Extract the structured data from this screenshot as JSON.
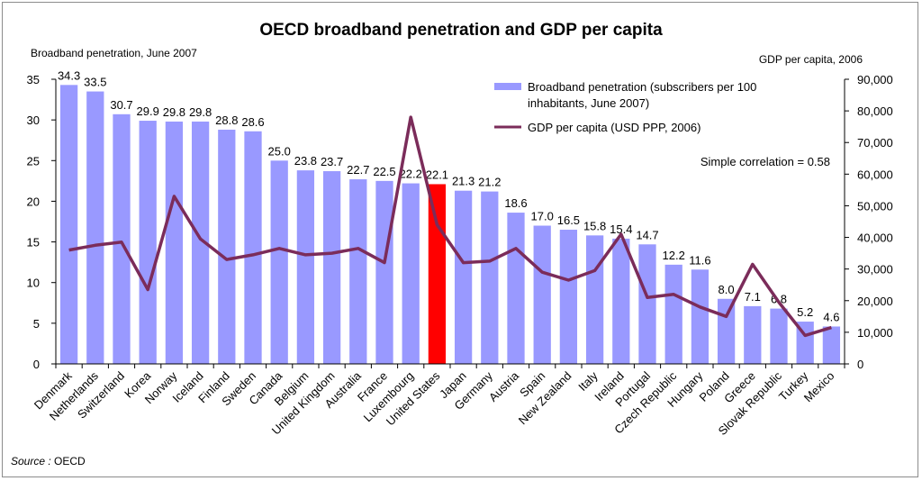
{
  "chart_data": {
    "type": "bar",
    "title": "OECD broadband penetration and GDP per capita",
    "y_left_label": "Broadband penetration, June 2007",
    "y_right_label": "GDP per capita, 2006",
    "y_left_lim": [
      0,
      35
    ],
    "y_left_ticks": [
      "0",
      "5",
      "10",
      "15",
      "20",
      "25",
      "30",
      "35"
    ],
    "y_right_lim": [
      0,
      90000
    ],
    "y_right_ticks": [
      "0",
      "10,000",
      "20,000",
      "30,000",
      "40,000",
      "50,000",
      "60,000",
      "70,000",
      "80,000",
      "90,000"
    ],
    "categories": [
      "Denmark",
      "Netherlands",
      "Switzerland",
      "Korea",
      "Norway",
      "Iceland",
      "Finland",
      "Sweden",
      "Canada",
      "Belgium",
      "United Kingdom",
      "Australia",
      "France",
      "Luxembourg",
      "United States",
      "Japan",
      "Germany",
      "Austria",
      "Spain",
      "New Zealand",
      "Italy",
      "Ireland",
      "Portugal",
      "Czech Republic",
      "Hungary",
      "Poland",
      "Greece",
      "Slovak Republic",
      "Turkey",
      "Mexico"
    ],
    "series": [
      {
        "name": "Broadband penetration (subscribers per 100 inhabitants, June 2007)",
        "kind": "bar",
        "axis": "left",
        "color": "#9999ff",
        "highlight_color": "#ff0000",
        "highlight_index": 14,
        "values": [
          34.3,
          33.5,
          30.7,
          29.9,
          29.8,
          29.8,
          28.8,
          28.6,
          25.0,
          23.8,
          23.7,
          22.7,
          22.5,
          22.2,
          22.1,
          21.3,
          21.2,
          18.6,
          17.0,
          16.5,
          15.8,
          15.4,
          14.7,
          12.2,
          11.6,
          8.0,
          7.1,
          6.8,
          5.2,
          4.6
        ],
        "labels": [
          "34.3",
          "33.5",
          "30.7",
          "29.9",
          "29.8",
          "29.8",
          "28.8",
          "28.6",
          "25.0",
          "23.8",
          "23.7",
          "22.7",
          "22.5",
          "22.2",
          "22.1",
          "21.3",
          "21.2",
          "18.6",
          "17.0",
          "16.5",
          "15.8",
          "15.4",
          "14.7",
          "12.2",
          "11.6",
          "8.0",
          "7.1",
          "6.8",
          "5.2",
          "4.6"
        ]
      },
      {
        "name": "GDP per capita (USD PPP, 2006)",
        "kind": "line",
        "axis": "right",
        "color": "#7b2c5a",
        "values": [
          36000,
          37500,
          38500,
          23500,
          53000,
          39500,
          33000,
          34500,
          36500,
          34500,
          35000,
          36500,
          32000,
          78000,
          44000,
          32000,
          32500,
          36500,
          29000,
          26500,
          29500,
          41000,
          21000,
          22000,
          18000,
          15000,
          31500,
          19500,
          9000,
          11500
        ]
      }
    ],
    "annotation": "Simple correlation = 0.58",
    "source": "Source : OECD",
    "grid": false,
    "legend_position": "top-right"
  }
}
